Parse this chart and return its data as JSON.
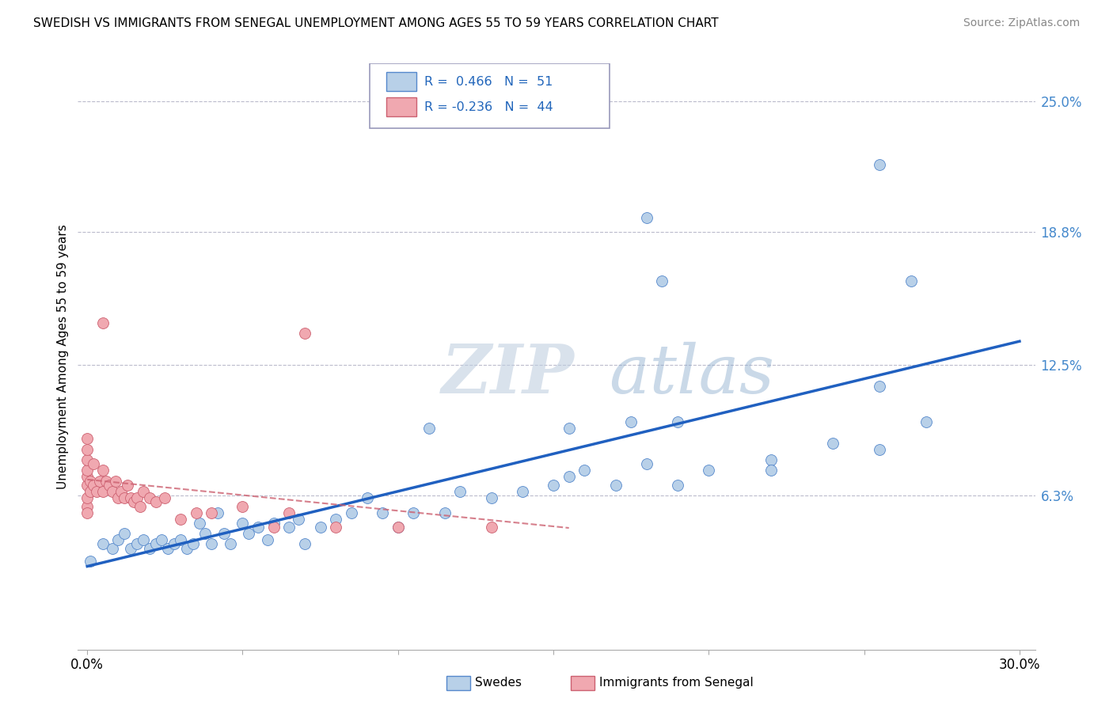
{
  "title": "SWEDISH VS IMMIGRANTS FROM SENEGAL UNEMPLOYMENT AMONG AGES 55 TO 59 YEARS CORRELATION CHART",
  "source": "Source: ZipAtlas.com",
  "ylabel": "Unemployment Among Ages 55 to 59 years",
  "xlim": [
    -0.003,
    0.305
  ],
  "ylim": [
    -0.01,
    0.268
  ],
  "ytick_right_labels": [
    "6.3%",
    "12.5%",
    "18.8%",
    "25.0%"
  ],
  "ytick_right_values": [
    0.063,
    0.125,
    0.188,
    0.25
  ],
  "color_swedes": "#b8d0e8",
  "color_swedes_edge": "#5588cc",
  "color_senegal": "#f0a8b0",
  "color_senegal_edge": "#cc6070",
  "color_swedes_line": "#2060c0",
  "color_senegal_line": "#cc6070",
  "watermark_zip": "ZIP",
  "watermark_atlas": "atlas",
  "swedes_x": [
    0.001,
    0.005,
    0.008,
    0.01,
    0.012,
    0.014,
    0.016,
    0.018,
    0.02,
    0.022,
    0.024,
    0.026,
    0.028,
    0.03,
    0.032,
    0.034,
    0.036,
    0.038,
    0.04,
    0.042,
    0.044,
    0.046,
    0.05,
    0.052,
    0.055,
    0.058,
    0.06,
    0.065,
    0.068,
    0.07,
    0.075,
    0.08,
    0.085,
    0.09,
    0.095,
    0.1,
    0.105,
    0.11,
    0.115,
    0.12,
    0.13,
    0.14,
    0.15,
    0.155,
    0.16,
    0.17,
    0.18,
    0.19,
    0.2,
    0.22,
    0.255
  ],
  "swedes_y": [
    0.032,
    0.04,
    0.038,
    0.042,
    0.045,
    0.038,
    0.04,
    0.042,
    0.038,
    0.04,
    0.042,
    0.038,
    0.04,
    0.042,
    0.038,
    0.04,
    0.05,
    0.045,
    0.04,
    0.055,
    0.045,
    0.04,
    0.05,
    0.045,
    0.048,
    0.042,
    0.05,
    0.048,
    0.052,
    0.04,
    0.048,
    0.052,
    0.055,
    0.062,
    0.055,
    0.048,
    0.055,
    0.095,
    0.055,
    0.065,
    0.062,
    0.065,
    0.068,
    0.072,
    0.075,
    0.068,
    0.078,
    0.068,
    0.075,
    0.08,
    0.085
  ],
  "swedes_x2": [
    0.155,
    0.175,
    0.18,
    0.185,
    0.19,
    0.22,
    0.24,
    0.255,
    0.255,
    0.265,
    0.27
  ],
  "swedes_y2": [
    0.095,
    0.098,
    0.195,
    0.165,
    0.098,
    0.075,
    0.088,
    0.115,
    0.22,
    0.165,
    0.098
  ],
  "senegal_x": [
    0.0,
    0.0,
    0.0,
    0.0,
    0.0,
    0.0,
    0.0,
    0.0,
    0.0,
    0.001,
    0.001,
    0.002,
    0.002,
    0.003,
    0.004,
    0.005,
    0.005,
    0.006,
    0.007,
    0.008,
    0.009,
    0.01,
    0.011,
    0.012,
    0.013,
    0.014,
    0.015,
    0.016,
    0.017,
    0.018,
    0.02,
    0.022,
    0.025,
    0.03,
    0.035,
    0.04,
    0.05,
    0.06,
    0.065,
    0.07,
    0.08,
    0.1,
    0.13,
    0.005
  ],
  "senegal_y": [
    0.058,
    0.062,
    0.068,
    0.072,
    0.075,
    0.08,
    0.085,
    0.09,
    0.055,
    0.065,
    0.07,
    0.068,
    0.078,
    0.065,
    0.07,
    0.065,
    0.075,
    0.07,
    0.068,
    0.065,
    0.07,
    0.062,
    0.065,
    0.062,
    0.068,
    0.062,
    0.06,
    0.062,
    0.058,
    0.065,
    0.062,
    0.06,
    0.062,
    0.052,
    0.055,
    0.055,
    0.058,
    0.048,
    0.055,
    0.14,
    0.048,
    0.048,
    0.048,
    0.145
  ]
}
